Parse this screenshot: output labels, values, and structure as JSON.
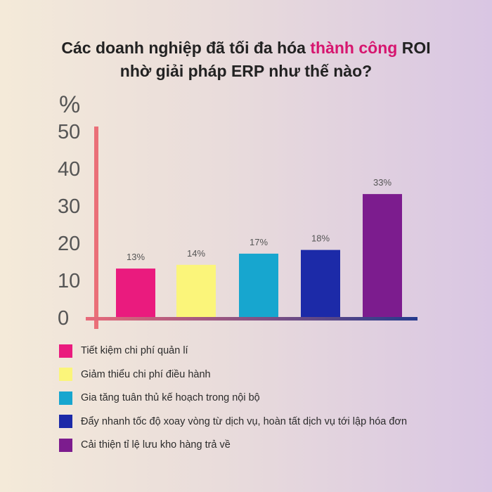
{
  "title": {
    "line1_prefix": "Các doanh nghiệp đã tối đa hóa ",
    "line1_highlight": "thành công",
    "line1_suffix": " ROI",
    "line2": "nhờ giải pháp ERP như thế nào?"
  },
  "colors": {
    "highlight": "#d6166f",
    "y_axis": "#ea6f78",
    "x_axis_start": "#e86a7a",
    "x_axis_end": "#253a8c"
  },
  "chart_data": {
    "type": "bar",
    "title": "Các doanh nghiệp đã tối đa hóa thành công ROI nhờ giải pháp ERP như thế nào?",
    "ylabel": "%",
    "ylim": [
      0,
      50
    ],
    "yticks": [
      0,
      10,
      20,
      30,
      40,
      50
    ],
    "grid": false,
    "legend_position": "bottom",
    "categories": [
      "Tiết kiệm chi phí quản lí",
      "Giảm thiểu chi phí điều hành",
      "Gia tăng tuân thủ kế hoạch trong nội bộ",
      "Đẩy nhanh tốc độ xoay vòng từ dịch vụ, hoàn tất dịch vụ tới lập hóa đơn",
      "Cải thiện tỉ lệ lưu kho hàng trả về"
    ],
    "values": [
      13,
      14,
      17,
      18,
      33
    ],
    "data_labels": [
      "13%",
      "14%",
      "17%",
      "18%",
      "33%"
    ],
    "bar_colors": [
      "#ea1b7e",
      "#fbf57a",
      "#17a6cf",
      "#1c2aa8",
      "#7c1c8e"
    ]
  }
}
